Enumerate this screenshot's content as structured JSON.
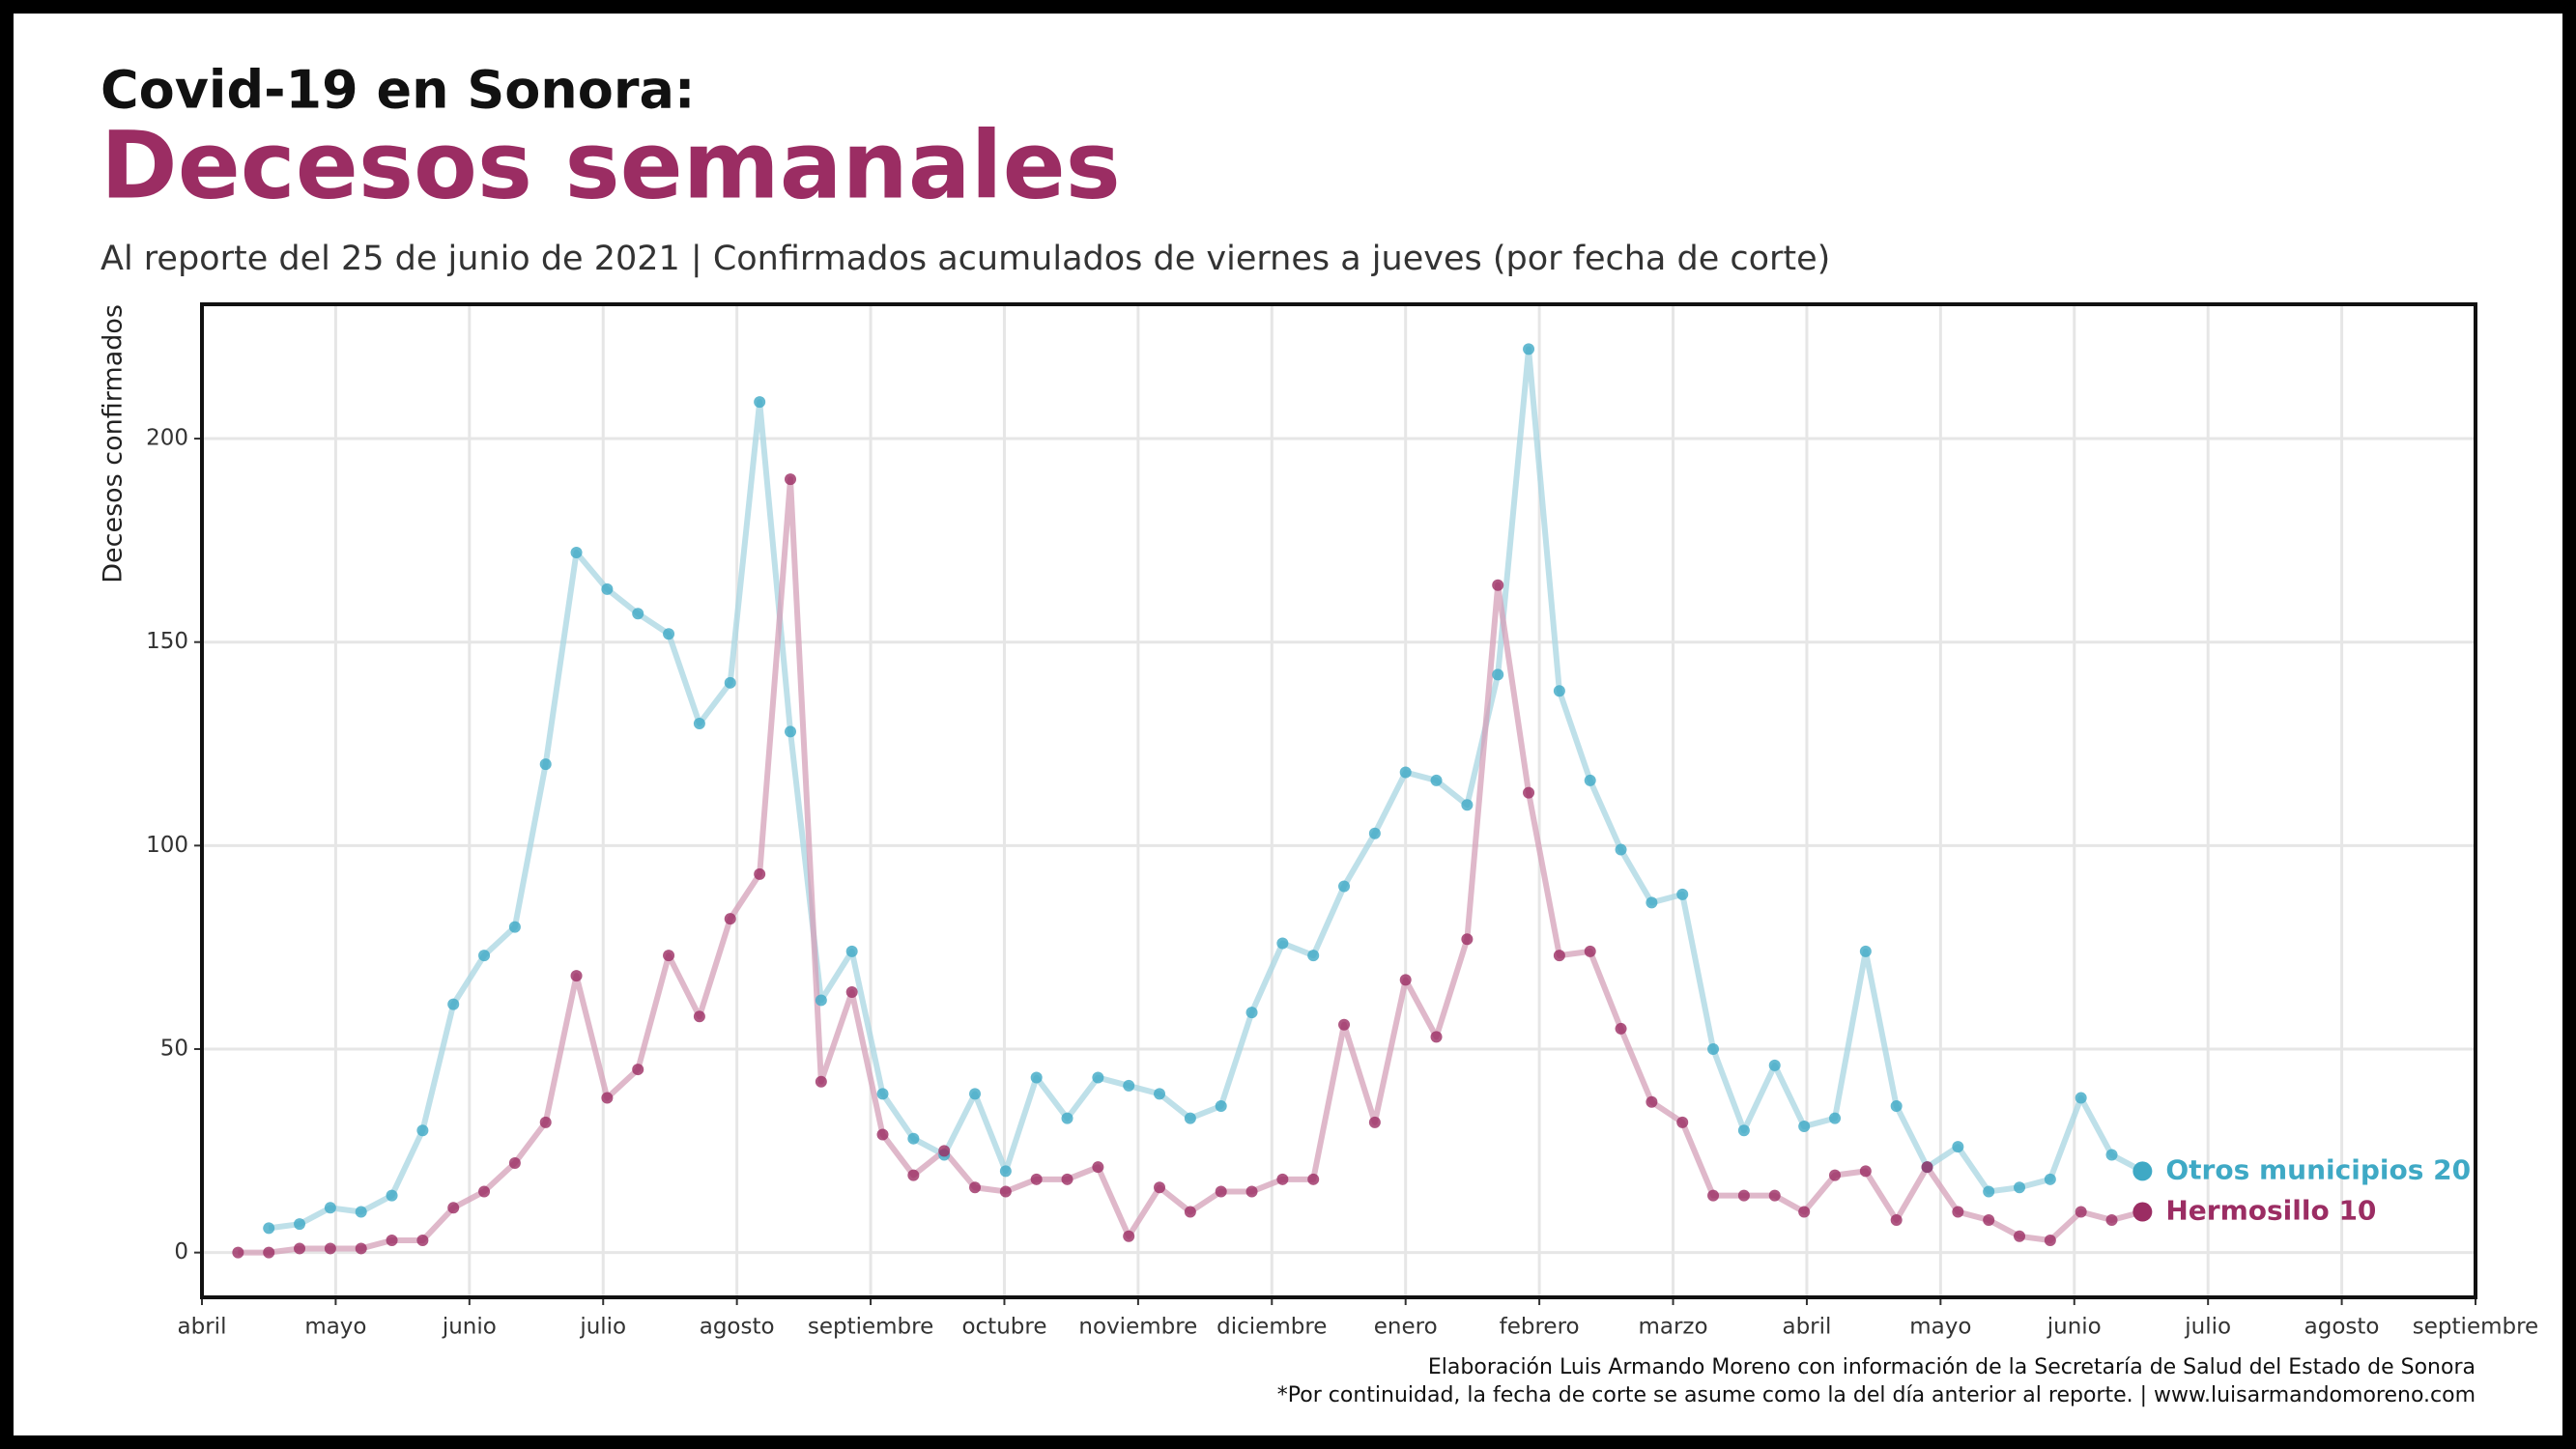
{
  "chart_data": {
    "type": "line",
    "title": "Covid-19 en Sonora:",
    "subtitle_main": "Decesos semanales",
    "subtitle": "Al reporte del 25 de junio de 2021 | Confirmados acumulados de viernes a jueves (por fecha de corte)",
    "y_label": "Decesos confirmados",
    "caption": [
      "Elaboración Luis Armando Moreno con información de la Secretaría de Salud del Estado de Sonora",
      "*Por continuidad, la fecha de corte se asume como la del día anterior al reporte. | www.luisarmandomoreno.com"
    ],
    "x": [
      0.27,
      0.5,
      0.73,
      0.96,
      1.19,
      1.42,
      1.65,
      1.88,
      2.11,
      2.34,
      2.57,
      2.8,
      3.03,
      3.26,
      3.49,
      3.72,
      3.95,
      4.17,
      4.4,
      4.63,
      4.86,
      5.09,
      5.32,
      5.55,
      5.78,
      6.01,
      6.24,
      6.47,
      6.7,
      6.93,
      7.16,
      7.39,
      7.62,
      7.85,
      8.08,
      8.31,
      8.54,
      8.77,
      9.0,
      9.23,
      9.46,
      9.69,
      9.92,
      10.15,
      10.38,
      10.61,
      10.84,
      11.07,
      11.3,
      11.53,
      11.76,
      11.98,
      12.21,
      12.44,
      12.67,
      12.9,
      13.13,
      13.36,
      13.59,
      13.82,
      14.05,
      14.28,
      14.51
    ],
    "series": [
      {
        "name": "Otros municipios",
        "color": "#3fa9c5",
        "line_color": "#a8d5e2",
        "values": [
          null,
          6,
          7,
          11,
          10,
          14,
          30,
          61,
          73,
          80,
          120,
          172,
          163,
          157,
          152,
          130,
          140,
          209,
          128,
          62,
          74,
          39,
          28,
          24,
          39,
          20,
          43,
          33,
          43,
          41,
          39,
          33,
          36,
          59,
          76,
          73,
          90,
          103,
          118,
          116,
          110,
          142,
          222,
          138,
          116,
          99,
          86,
          88,
          50,
          30,
          46,
          31,
          33,
          74,
          36,
          21,
          26,
          15,
          16,
          18,
          38,
          24,
          20
        ]
      },
      {
        "name": "Hermosillo",
        "color": "#9b2d63",
        "line_color": "#d4a0b8",
        "values": [
          0,
          0,
          1,
          1,
          1,
          3,
          3,
          11,
          15,
          22,
          32,
          68,
          38,
          45,
          73,
          58,
          82,
          93,
          190,
          42,
          64,
          29,
          19,
          25,
          16,
          15,
          18,
          18,
          21,
          4,
          16,
          10,
          15,
          15,
          18,
          18,
          56,
          32,
          67,
          53,
          77,
          164,
          113,
          73,
          74,
          55,
          37,
          32,
          14,
          14,
          14,
          10,
          19,
          20,
          8,
          21,
          10,
          8,
          4,
          3,
          10,
          8,
          10
        ]
      }
    ],
    "xlim": [
      0,
      17
    ],
    "xticks": [
      {
        "value": 0,
        "label": "abril"
      },
      {
        "value": 1,
        "label": "mayo"
      },
      {
        "value": 2,
        "label": "junio"
      },
      {
        "value": 3,
        "label": "julio"
      },
      {
        "value": 4,
        "label": "agosto"
      },
      {
        "value": 5,
        "label": "septiembre"
      },
      {
        "value": 6,
        "label": "octubre"
      },
      {
        "value": 7,
        "label": "noviembre"
      },
      {
        "value": 8,
        "label": "diciembre"
      },
      {
        "value": 9,
        "label": "enero"
      },
      {
        "value": 10,
        "label": "febrero"
      },
      {
        "value": 11,
        "label": "marzo"
      },
      {
        "value": 12,
        "label": "abril"
      },
      {
        "value": 13,
        "label": "mayo"
      },
      {
        "value": 14,
        "label": "junio"
      },
      {
        "value": 15,
        "label": "julio"
      },
      {
        "value": 16,
        "label": "agosto"
      },
      {
        "value": 17,
        "label": "septiembre"
      }
    ],
    "ylim": [
      -11,
      233
    ],
    "yticks": [
      0,
      50,
      100,
      150,
      200
    ],
    "grid": true
  }
}
